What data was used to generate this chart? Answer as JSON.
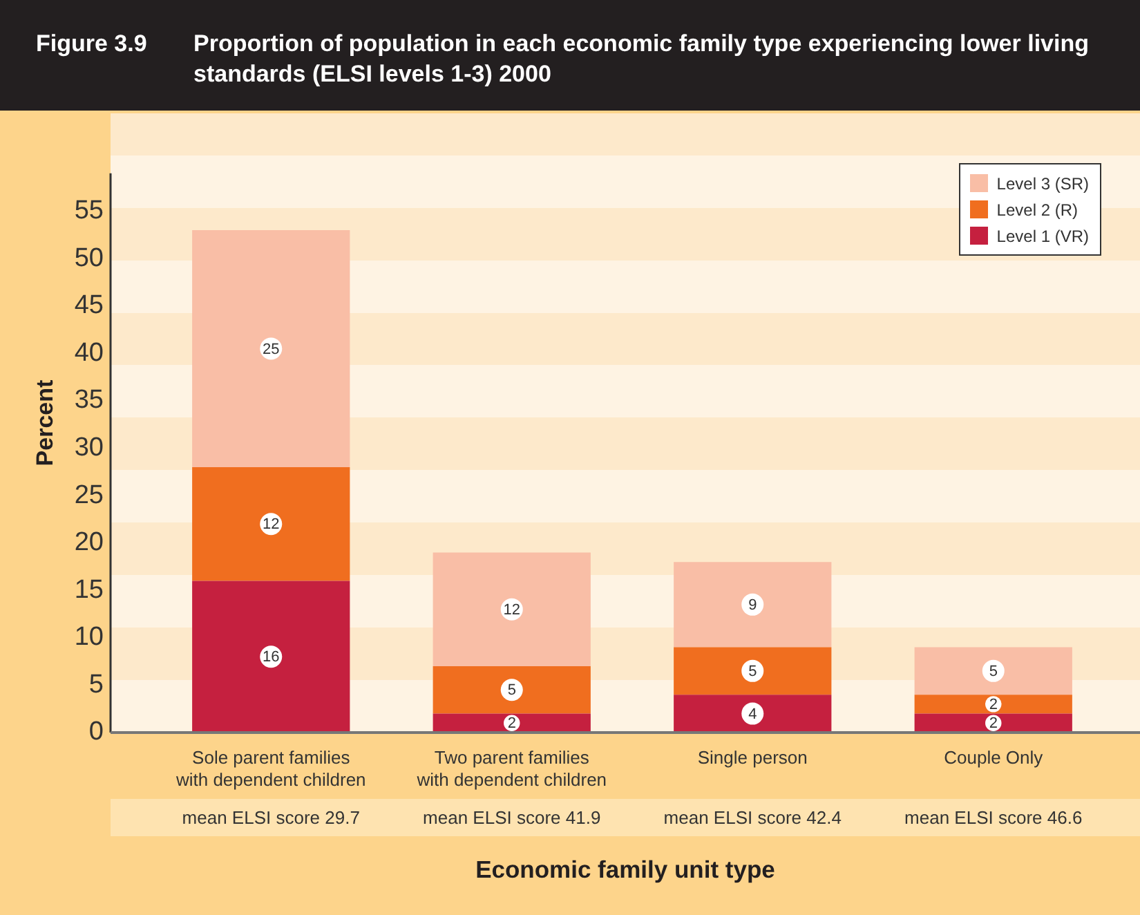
{
  "chart_data": {
    "type": "bar",
    "title": "Figure 3.9 Proportion of population in each economic family type experiencing lower living standards (ELSI levels 1-3) 2000",
    "categories": [
      "Sole parent families with dependent children",
      "Two parent families with dependent children",
      "Single person",
      "Couple Only"
    ],
    "series": [
      {
        "name": "Level 1 (VR)",
        "color": "#c5203f",
        "values": [
          16,
          2,
          4,
          2
        ]
      },
      {
        "name": "Level 2 (R)",
        "color": "#f06e1f",
        "values": [
          12,
          5,
          5,
          2
        ]
      },
      {
        "name": "Level 3 (SR)",
        "color": "#f9bea6",
        "values": [
          25,
          12,
          9,
          5
        ]
      }
    ],
    "stacked": true,
    "ylim": [
      0,
      59
    ],
    "yticks": [
      0,
      5,
      10,
      15,
      20,
      25,
      30,
      35,
      40,
      45,
      50,
      55
    ],
    "xlabel": "Economic family unit type",
    "ylabel": "Percent",
    "annotations": [
      "mean ELSI score 29.7",
      "mean ELSI score 41.9",
      "mean ELSI score 42.4",
      "mean ELSI score 46.6"
    ],
    "data_labels": true,
    "legend": "top right"
  }
}
